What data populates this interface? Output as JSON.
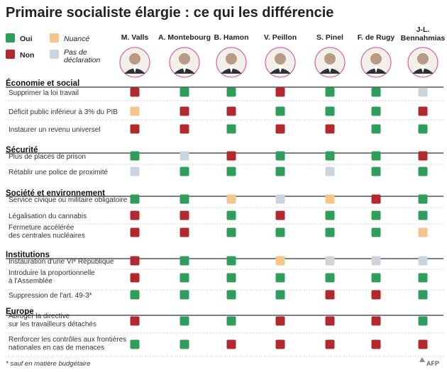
{
  "title": "Primaire socialiste élargie : ce qui les différencie",
  "legend": [
    {
      "key": "oui",
      "label": "Oui",
      "color": "#2f9e5b",
      "style": "bold"
    },
    {
      "key": "non",
      "label": "Non",
      "color": "#b3282d",
      "style": "bold"
    },
    {
      "key": "nuance",
      "label": "Nuancé",
      "color": "#f6c58c",
      "style": "italic"
    },
    {
      "key": "nd",
      "label": "Pas de déclaration",
      "color": "#c9d5df",
      "style": "italic"
    }
  ],
  "chart_data": {
    "type": "table",
    "candidates": [
      "M. Valls",
      "A. Montebourg",
      "B. Hamon",
      "V. Peillon",
      "S. Pinel",
      "F. de Rugy",
      "J-L. Bennahmias"
    ],
    "sections": [
      {
        "title": "Économie et social",
        "rows": [
          {
            "label": "Supprimer la loi travail",
            "values": [
              "non",
              "oui",
              "oui",
              "non",
              "oui",
              "oui",
              "nd"
            ]
          },
          {
            "label": "Déficit public inférieur à 3% du PIB",
            "values": [
              "nuance",
              "non",
              "non",
              "oui",
              "oui",
              "oui",
              "non"
            ]
          },
          {
            "label": "Instaurer un revenu universel",
            "values": [
              "non",
              "non",
              "oui",
              "non",
              "non",
              "oui",
              "oui"
            ]
          }
        ]
      },
      {
        "title": "Sécurité",
        "rows": [
          {
            "label": "Plus de places de prison",
            "values": [
              "oui",
              "nd",
              "non",
              "oui",
              "oui",
              "oui",
              "non"
            ]
          },
          {
            "label": "Rétablir une police de proximité",
            "values": [
              "nd",
              "oui",
              "oui",
              "oui",
              "nd",
              "oui",
              "oui"
            ]
          }
        ]
      },
      {
        "title": "Société et environnement",
        "rows": [
          {
            "label": "Service civique ou militaire obligatoire",
            "values": [
              "oui",
              "oui",
              "nuance",
              "nd",
              "nuance",
              "non",
              "oui"
            ]
          },
          {
            "label": "Légalisation du cannabis",
            "values": [
              "non",
              "non",
              "oui",
              "non",
              "oui",
              "oui",
              "oui"
            ]
          },
          {
            "label": "Fermeture accélérée\ndes centrales nucléaires",
            "values": [
              "non",
              "non",
              "oui",
              "oui",
              "oui",
              "oui",
              "nuance"
            ]
          }
        ]
      },
      {
        "title": "Institutions",
        "rows": [
          {
            "label": "Instauration d'une VIᵉ République",
            "values": [
              "non",
              "oui",
              "oui",
              "nuance",
              "nd",
              "nd",
              "nd"
            ]
          },
          {
            "label": "Introduire la proportionnelle\nà l'Assemblée",
            "values": [
              "non",
              "oui",
              "oui",
              "oui",
              "oui",
              "oui",
              "oui"
            ]
          },
          {
            "label": "Suppression de l'art. 49-3*",
            "values": [
              "oui",
              "oui",
              "oui",
              "oui",
              "non",
              "non",
              "oui"
            ]
          }
        ]
      },
      {
        "title": "Europe",
        "rows": [
          {
            "label": "Abroger la directive\nsur les travailleurs détachés",
            "values": [
              "non",
              "oui",
              "oui",
              "non",
              "non",
              "non",
              "oui"
            ]
          },
          {
            "label": "Renforcer les contrôles aux frontières\nnationales en cas de menaces",
            "values": [
              "oui",
              "oui",
              "non",
              "non",
              "non",
              "non",
              "non"
            ]
          }
        ]
      }
    ]
  },
  "footnote": "* sauf en matière budgétaire",
  "credit": "AFP"
}
